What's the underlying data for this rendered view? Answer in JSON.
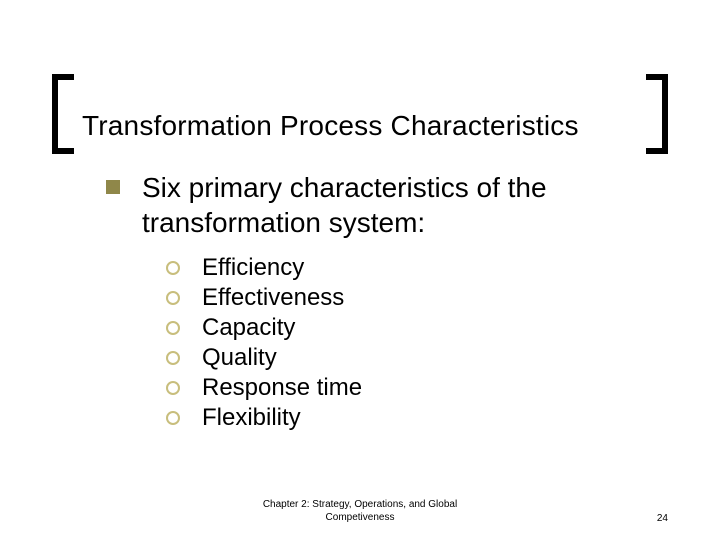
{
  "colors": {
    "background": "#ffffff",
    "text": "#000000",
    "bullet1": "#8f8749",
    "bullet2": "#c8be7d",
    "bracket": "#000000"
  },
  "typography": {
    "title_fontsize": 28,
    "lvl1_fontsize": 28,
    "lvl2_fontsize": 24,
    "footer_fontsize": 10,
    "font_family": "Arial"
  },
  "title": "Transformation Process Characteristics",
  "lvl1_text": "Six primary characteristics of the transformation system:",
  "sub_items": [
    "Efficiency",
    "Effectiveness",
    "Capacity",
    "Quality",
    "Response time",
    "Flexibility"
  ],
  "footer": {
    "chapter_line1": "Chapter 2: Strategy, Operations, and Global",
    "chapter_line2": "Competiveness",
    "page_number": "24"
  }
}
